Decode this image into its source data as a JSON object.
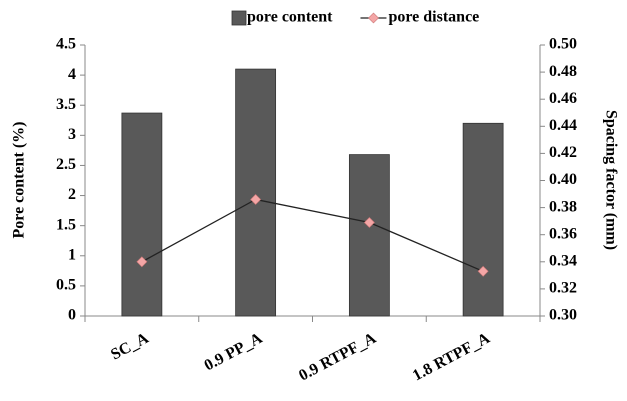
{
  "chart_data": {
    "type": "bar",
    "categories": [
      "SC_A",
      "0.9 PP_A",
      "0.9 RTPF_A",
      "1.8 RTPF_A"
    ],
    "series": [
      {
        "name": "pore content",
        "color": "#595959",
        "values": [
          3.37,
          4.1,
          2.68,
          3.2
        ]
      },
      {
        "name": "pore distance",
        "type": "line",
        "axis": "y2",
        "color": "#f4a6a6",
        "values": [
          0.34,
          0.386,
          0.369,
          0.333
        ]
      }
    ],
    "ylabel": "Pore content (%)",
    "y2label": "Spacing factor (mm)",
    "ylim": [
      0,
      4.5
    ],
    "yticks": [
      0,
      0.5,
      1,
      1.5,
      2,
      2.5,
      3,
      3.5,
      4,
      4.5
    ],
    "y2lim": [
      0.3,
      0.5
    ],
    "y2ticks": [
      {
        "value": 0.3,
        "label": "0.30"
      },
      0.32,
      0.34,
      0.36,
      0.38,
      {
        "value": 0.4,
        "label": "0.40"
      },
      0.42,
      0.44,
      0.46,
      0.48,
      {
        "value": 0.5,
        "label": "0.50"
      }
    ],
    "legend": "top"
  }
}
